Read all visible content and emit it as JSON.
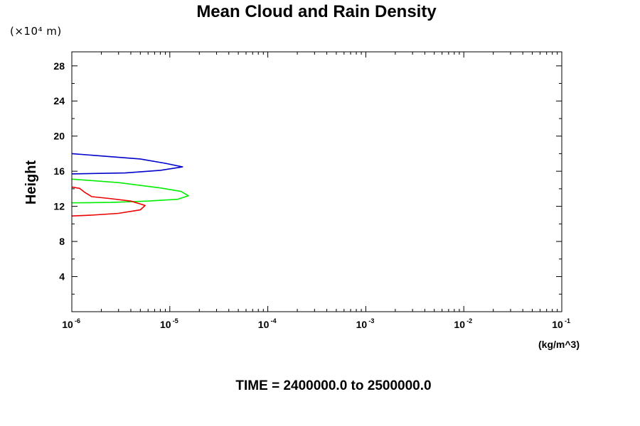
{
  "chart_data": {
    "type": "line",
    "title": "Mean Cloud and Rain Density",
    "ylabel": "Height",
    "y_scale_label": "(×10⁴ m)",
    "xlabel_unit": "(kg/m^3)",
    "footer": "TIME = 2400000.0 to 2500000.0",
    "x_scale": "log",
    "xlim": [
      1e-06,
      0.1
    ],
    "ylim": [
      0,
      29.6
    ],
    "y_ticks": [
      "4",
      "8",
      "12",
      "16",
      "20",
      "24",
      "28"
    ],
    "x_ticks": [
      {
        "base": "10",
        "exp": "-6"
      },
      {
        "base": "10",
        "exp": "-5"
      },
      {
        "base": "10",
        "exp": "-4"
      },
      {
        "base": "10",
        "exp": "-3"
      },
      {
        "base": "10",
        "exp": "-2"
      },
      {
        "base": "10",
        "exp": "-1"
      }
    ],
    "grid": false,
    "series": [
      {
        "color": "#0000cc",
        "points": [
          [
            1e-06,
            18.0
          ],
          [
            5e-06,
            17.4
          ],
          [
            9e-06,
            16.9
          ],
          [
            1.35e-05,
            16.5
          ],
          [
            8e-06,
            16.1
          ],
          [
            3.5e-06,
            15.8
          ],
          [
            1e-06,
            15.7
          ]
        ]
      },
      {
        "color": "#00ee00",
        "points": [
          [
            1e-06,
            15.1
          ],
          [
            3e-06,
            14.7
          ],
          [
            8e-06,
            14.1
          ],
          [
            1.3e-05,
            13.7
          ],
          [
            1.55e-05,
            13.2
          ],
          [
            1.2e-05,
            12.8
          ],
          [
            6e-06,
            12.6
          ],
          [
            2.5e-06,
            12.45
          ],
          [
            1e-06,
            12.4
          ]
        ]
      },
      {
        "color": "#ee0000",
        "points": [
          [
            1e-06,
            14.2
          ],
          [
            1.2e-06,
            14.05
          ],
          [
            1.35e-06,
            13.6
          ],
          [
            1.6e-06,
            13.1
          ],
          [
            2.4e-06,
            12.9
          ],
          [
            4e-06,
            12.6
          ],
          [
            5.6e-06,
            12.1
          ],
          [
            5e-06,
            11.6
          ],
          [
            3e-06,
            11.2
          ],
          [
            1.6e-06,
            11.0
          ],
          [
            1e-06,
            10.9
          ]
        ]
      }
    ]
  }
}
